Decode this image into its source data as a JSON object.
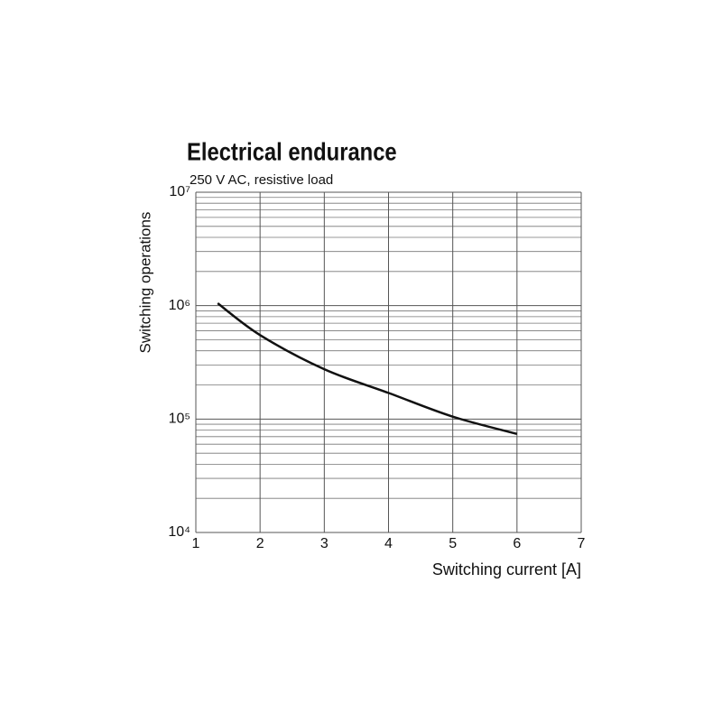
{
  "chart_data": {
    "type": "line",
    "title": "Electrical endurance",
    "subtitle": "250 V AC, resistive load",
    "x_label": "Switching current [A]",
    "y_label": "Switching operations",
    "x": [
      1.34,
      2,
      3,
      4,
      5,
      6
    ],
    "values": [
      1050000,
      550000,
      275000,
      170000,
      105000,
      74000
    ],
    "color": "#111111",
    "xlim": [
      1,
      7
    ],
    "xticks": [
      1,
      2,
      3,
      4,
      5,
      6,
      7
    ],
    "ylim": [
      10000,
      10000000
    ],
    "ylog": true,
    "yticks": [
      {
        "value": 10000,
        "label": "10⁴"
      },
      {
        "value": 100000,
        "label": "10⁵"
      },
      {
        "value": 1000000,
        "label": "10⁶"
      },
      {
        "value": 10000000,
        "label": "10⁷"
      }
    ],
    "grid": true
  }
}
